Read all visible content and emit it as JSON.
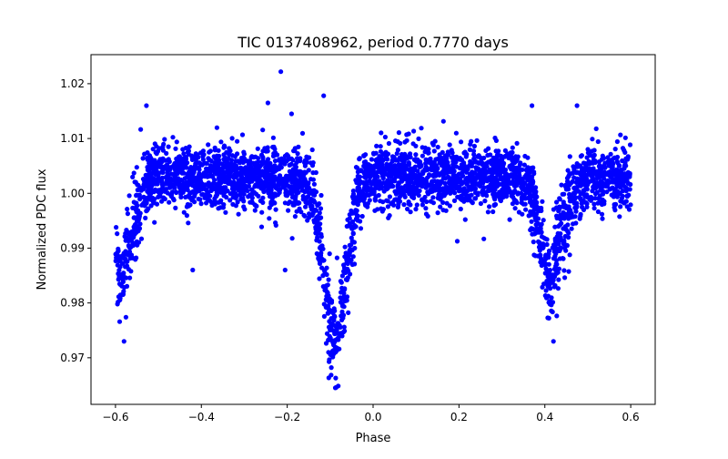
{
  "chart_data": {
    "type": "scatter",
    "title": "TIC 0137408962, period 0.7770 days",
    "xlabel": "Phase",
    "ylabel": "Normalized PDC flux",
    "xlim": [
      -0.657,
      0.657
    ],
    "ylim": [
      0.9615,
      1.0253
    ],
    "xticks": [
      -0.6,
      -0.4,
      -0.2,
      0.0,
      0.2,
      0.4,
      0.6
    ],
    "xtick_labels": [
      "−0.6",
      "−0.4",
      "−0.2",
      "0.0",
      "0.2",
      "0.4",
      "0.6"
    ],
    "yticks": [
      0.97,
      0.98,
      0.99,
      1.0,
      1.01,
      1.02
    ],
    "ytick_labels": [
      "0.97",
      "0.98",
      "0.99",
      "1.00",
      "1.01",
      "1.02"
    ],
    "grid": false,
    "marker_color": "#0000ff",
    "phase_range": [
      -0.6,
      0.6
    ],
    "n_points": 3500,
    "scatter_sigma": 0.0028,
    "mean_curve": [
      [
        -0.6,
        0.988
      ],
      [
        -0.59,
        0.983
      ],
      [
        -0.575,
        0.988
      ],
      [
        -0.56,
        0.994
      ],
      [
        -0.54,
        0.999
      ],
      [
        -0.52,
        1.0025
      ],
      [
        -0.5,
        1.003
      ],
      [
        -0.3,
        1.003
      ],
      [
        -0.16,
        1.0025
      ],
      [
        -0.14,
        1.0
      ],
      [
        -0.12,
        0.99
      ],
      [
        -0.105,
        0.979
      ],
      [
        -0.09,
        0.972
      ],
      [
        -0.075,
        0.977
      ],
      [
        -0.06,
        0.987
      ],
      [
        -0.045,
        0.996
      ],
      [
        -0.03,
        1.001
      ],
      [
        -0.01,
        1.003
      ],
      [
        0.3,
        1.003
      ],
      [
        0.36,
        1.002
      ],
      [
        0.375,
        0.998
      ],
      [
        0.395,
        0.989
      ],
      [
        0.41,
        0.983
      ],
      [
        0.425,
        0.988
      ],
      [
        0.44,
        0.994
      ],
      [
        0.46,
        0.999
      ],
      [
        0.48,
        1.0025
      ],
      [
        0.6,
        1.003
      ]
    ],
    "outliers": [
      [
        -0.215,
        1.0222
      ],
      [
        -0.245,
        1.0165
      ],
      [
        -0.19,
        1.0145
      ],
      [
        -0.115,
        1.0178
      ],
      [
        -0.205,
        0.986
      ],
      [
        -0.42,
        0.986
      ],
      [
        -0.58,
        0.973
      ],
      [
        -0.088,
        0.9645
      ],
      [
        0.42,
        0.973
      ],
      [
        0.37,
        1.016
      ],
      [
        0.475,
        1.016
      ],
      [
        -0.528,
        1.016
      ]
    ]
  }
}
